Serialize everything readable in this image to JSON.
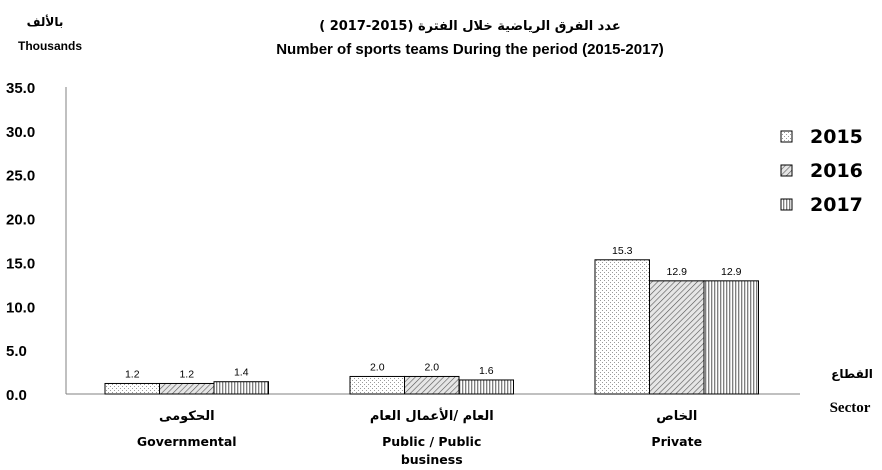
{
  "chart_data": {
    "type": "bar",
    "title_ar": "عدد الفرق الرياضية خلال الفترة (2015-2017 )",
    "title": "Number of sports teams During the period (2015-2017)",
    "ylabel_ar": "بالألف",
    "ylabel": "Thousands",
    "xlabel_ar": "القطاع",
    "xlabel": "Sector",
    "ylim": [
      0,
      35
    ],
    "yticks": [
      "0.0",
      "5.0",
      "10.0",
      "15.0",
      "20.0",
      "25.0",
      "30.0",
      "35.0"
    ],
    "categories": [
      {
        "ar": "الحكومى",
        "en": "Governmental",
        "en_line2": ""
      },
      {
        "ar": "العام /الأعمال العام",
        "en": "Public / Public",
        "en_line2": "business"
      },
      {
        "ar": "الخاص",
        "en": "Private",
        "en_line2": ""
      }
    ],
    "series": [
      {
        "name": "2015",
        "values": [
          1.2,
          2.0,
          15.3
        ],
        "labels": [
          "1.2",
          "2.0",
          "15.3"
        ]
      },
      {
        "name": "2016",
        "values": [
          1.2,
          2.0,
          12.9
        ],
        "labels": [
          "1.2",
          "2.0",
          "12.9"
        ]
      },
      {
        "name": "2017",
        "values": [
          1.4,
          1.6,
          12.9
        ],
        "labels": [
          "1.4",
          "1.6",
          "12.9"
        ]
      }
    ],
    "legend_position": "right",
    "grid": false
  }
}
